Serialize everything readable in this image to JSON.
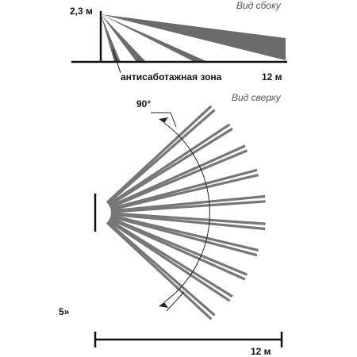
{
  "side_view": {
    "title": "Вид сбоку",
    "height_label": "2,3 м",
    "zone_label": "антисаботажная зона",
    "distance_label": "12 м"
  },
  "top_view": {
    "title": "Вид сверху",
    "angle_label": "90°",
    "distance_label": "12 м",
    "edge_text": "5»"
  }
}
